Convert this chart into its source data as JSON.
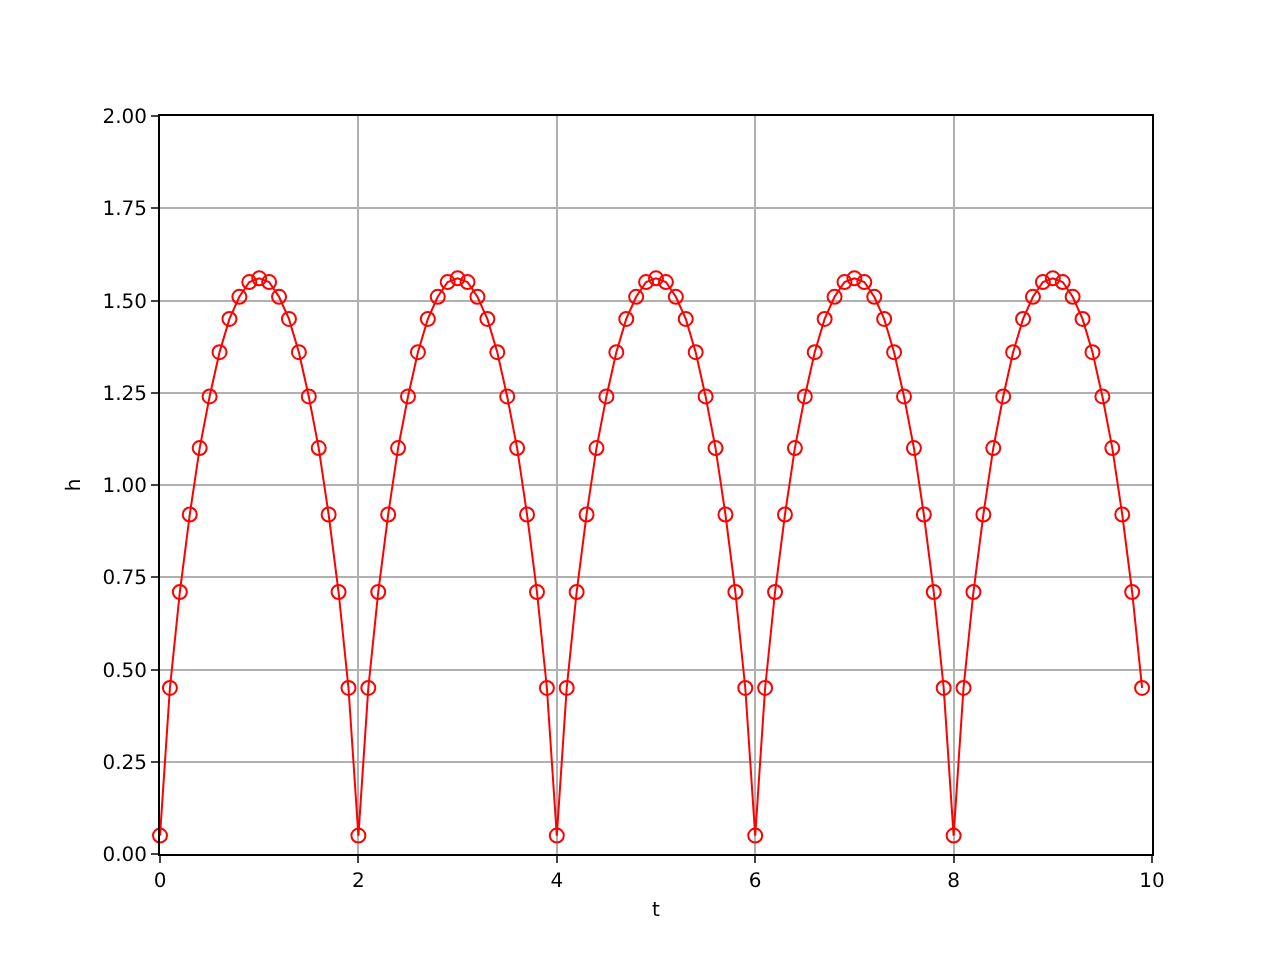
{
  "chart_data": {
    "type": "line",
    "xlabel": "t",
    "ylabel": "h",
    "marker": "circle",
    "line_style": "solid",
    "grid": true,
    "x": [
      0,
      0.1,
      0.2,
      0.3,
      0.4,
      0.5,
      0.6,
      0.7,
      0.8,
      0.9,
      1,
      1.1,
      1.2,
      1.3,
      1.4,
      1.5,
      1.6,
      1.7,
      1.8,
      1.9,
      2,
      2.1,
      2.2,
      2.3,
      2.4,
      2.5,
      2.6,
      2.7,
      2.8,
      2.9,
      3,
      3.1,
      3.2,
      3.3,
      3.4,
      3.5,
      3.6,
      3.7,
      3.8,
      3.9,
      4,
      4.1,
      4.2,
      4.3,
      4.4,
      4.5,
      4.6,
      4.7,
      4.8,
      4.9,
      5,
      5.1,
      5.2,
      5.3,
      5.4,
      5.5,
      5.6,
      5.7,
      5.8,
      5.9,
      6,
      6.1,
      6.2,
      6.3,
      6.4,
      6.5,
      6.6,
      6.7,
      6.8,
      6.9,
      7,
      7.1,
      7.2,
      7.3,
      7.4,
      7.5,
      7.6,
      7.7,
      7.8,
      7.9,
      8,
      8.1,
      8.2,
      8.3,
      8.4,
      8.5,
      8.6,
      8.7,
      8.8,
      8.9,
      9,
      9.1,
      9.2,
      9.3,
      9.4,
      9.5,
      9.6,
      9.7,
      9.8,
      9.9
    ],
    "series": [
      {
        "color": "#ff0000",
        "values": [
          0.05,
          0.45,
          0.71,
          0.92,
          1.1,
          1.24,
          1.36,
          1.45,
          1.51,
          1.55,
          1.56,
          1.55,
          1.51,
          1.45,
          1.36,
          1.24,
          1.1,
          0.92,
          0.71,
          0.45,
          0.05,
          0.45,
          0.71,
          0.92,
          1.1,
          1.24,
          1.36,
          1.45,
          1.51,
          1.55,
          1.56,
          1.55,
          1.51,
          1.45,
          1.36,
          1.24,
          1.1,
          0.92,
          0.71,
          0.45,
          0.05,
          0.45,
          0.71,
          0.92,
          1.1,
          1.24,
          1.36,
          1.45,
          1.51,
          1.55,
          1.56,
          1.55,
          1.51,
          1.45,
          1.36,
          1.24,
          1.1,
          0.92,
          0.71,
          0.45,
          0.05,
          0.45,
          0.71,
          0.92,
          1.1,
          1.24,
          1.36,
          1.45,
          1.51,
          1.55,
          1.56,
          1.55,
          1.51,
          1.45,
          1.36,
          1.24,
          1.1,
          0.92,
          0.71,
          0.45,
          0.05,
          0.45,
          0.71,
          0.92,
          1.1,
          1.24,
          1.36,
          1.45,
          1.51,
          1.55,
          1.56,
          1.55,
          1.51,
          1.45,
          1.36,
          1.24,
          1.1,
          0.92,
          0.71,
          0.45
        ]
      }
    ],
    "xlim": [
      0,
      10
    ],
    "xticks": [
      0,
      2,
      4,
      6,
      8,
      10
    ],
    "ylim": [
      0,
      2
    ],
    "yticks": [
      {
        "value": 0,
        "label": "0.00"
      },
      {
        "value": 0.25,
        "label": "0.25"
      },
      {
        "value": 0.5,
        "label": "0.50"
      },
      {
        "value": 0.75,
        "label": "0.75"
      },
      {
        "value": 1,
        "label": "1.00"
      },
      {
        "value": 1.25,
        "label": "1.25"
      },
      {
        "value": 1.5,
        "label": "1.50"
      },
      {
        "value": 1.75,
        "label": "1.75"
      },
      {
        "value": 2,
        "label": "2.00"
      }
    ]
  }
}
